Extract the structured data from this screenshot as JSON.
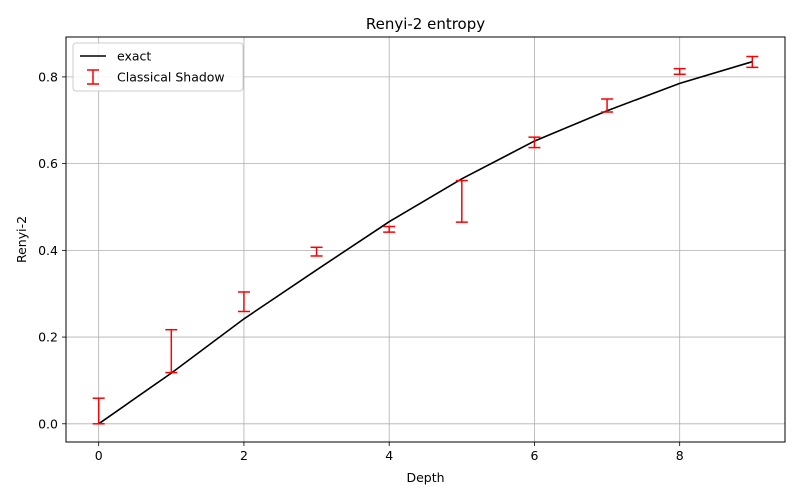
{
  "chart_data": {
    "type": "line",
    "title": "Renyi-2 entropy",
    "xlabel": "Depth",
    "ylabel": "Renyi-2",
    "xlim": [
      -0.45,
      9.45
    ],
    "ylim": [
      -0.042,
      0.892
    ],
    "xticks": [
      0,
      2,
      4,
      6,
      8
    ],
    "yticks": [
      0.0,
      0.2,
      0.4,
      0.6,
      0.8
    ],
    "xtick_labels": [
      "0",
      "2",
      "4",
      "6",
      "8"
    ],
    "ytick_labels": [
      "0.0",
      "0.2",
      "0.4",
      "0.6",
      "0.8"
    ],
    "grid": true,
    "legend_position": "top-left",
    "series": [
      {
        "name": "exact",
        "kind": "line",
        "color": "#000000",
        "x": [
          0,
          1,
          2,
          3,
          4,
          5,
          6,
          7,
          8,
          9
        ],
        "y": [
          0.0,
          0.117,
          0.242,
          0.355,
          0.466,
          0.565,
          0.652,
          0.722,
          0.785,
          0.835
        ]
      },
      {
        "name": "Classical Shadow",
        "kind": "errorbar",
        "color": "#ff0000",
        "x": [
          0,
          1,
          2,
          3,
          4,
          5,
          6,
          7,
          8,
          9
        ],
        "y_low": [
          0.0,
          0.118,
          0.259,
          0.387,
          0.442,
          0.465,
          0.637,
          0.719,
          0.806,
          0.822
        ],
        "y_high": [
          0.059,
          0.217,
          0.304,
          0.407,
          0.455,
          0.561,
          0.661,
          0.749,
          0.819,
          0.847
        ]
      }
    ]
  }
}
